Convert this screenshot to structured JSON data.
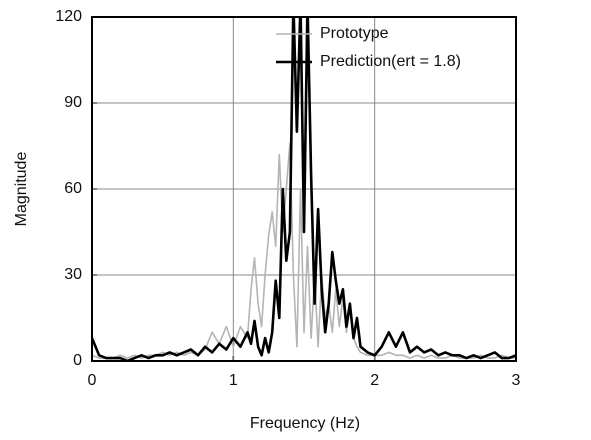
{
  "chart_data": {
    "type": "line",
    "xlabel": "Frequency (Hz)",
    "ylabel": "Magnitude",
    "xlim": [
      0,
      3
    ],
    "xticks": [
      0,
      1,
      2,
      3
    ],
    "ylim": [
      0,
      120
    ],
    "yticks": [
      0,
      30,
      60,
      90,
      120
    ],
    "grid": true,
    "legend": "top-right",
    "x": [
      0,
      0.05,
      0.1,
      0.15,
      0.2,
      0.25,
      0.3,
      0.35,
      0.4,
      0.45,
      0.5,
      0.55,
      0.6,
      0.65,
      0.7,
      0.75,
      0.8,
      0.85,
      0.9,
      0.95,
      1,
      1.05,
      1.1,
      1.125,
      1.15,
      1.175,
      1.2,
      1.225,
      1.25,
      1.275,
      1.3,
      1.325,
      1.35,
      1.375,
      1.4,
      1.425,
      1.45,
      1.475,
      1.5,
      1.525,
      1.55,
      1.575,
      1.6,
      1.625,
      1.65,
      1.675,
      1.7,
      1.725,
      1.75,
      1.775,
      1.8,
      1.825,
      1.85,
      1.875,
      1.9,
      1.95,
      2,
      2.05,
      2.1,
      2.15,
      2.2,
      2.25,
      2.3,
      2.35,
      2.4,
      2.45,
      2.5,
      2.55,
      2.6,
      2.65,
      2.7,
      2.75,
      2.8,
      2.85,
      2.9,
      2.95,
      3
    ],
    "series": [
      {
        "name": "Prototype",
        "color": "#b4b4b4",
        "width": 1.6,
        "values": [
          2,
          1,
          1,
          1,
          2,
          1,
          2,
          1,
          2,
          2,
          3,
          2,
          3,
          2,
          3,
          2,
          4,
          10,
          6,
          12,
          5,
          12,
          8,
          25,
          36,
          20,
          12,
          30,
          44,
          52,
          40,
          72,
          45,
          60,
          76,
          30,
          5,
          60,
          10,
          40,
          8,
          30,
          5,
          30,
          15,
          20,
          10,
          25,
          12,
          22,
          10,
          18,
          8,
          5,
          3,
          2,
          2,
          2,
          3,
          2,
          2,
          1,
          2,
          1,
          2,
          1,
          1,
          2,
          1,
          1,
          1,
          2,
          1,
          1,
          2,
          1,
          1
        ]
      },
      {
        "name": "Prediction(ert = 1.8)",
        "color": "#000000",
        "width": 2.6,
        "values": [
          8,
          2,
          1,
          1,
          1,
          0,
          1,
          2,
          1,
          2,
          2,
          3,
          2,
          3,
          4,
          2,
          5,
          3,
          6,
          4,
          8,
          5,
          10,
          6,
          14,
          5,
          2,
          8,
          3,
          10,
          28,
          15,
          60,
          35,
          45,
          125,
          80,
          125,
          45,
          125,
          65,
          20,
          53,
          25,
          10,
          20,
          38,
          28,
          20,
          25,
          12,
          20,
          8,
          15,
          5,
          3,
          2,
          5,
          10,
          5,
          10,
          3,
          5,
          3,
          4,
          2,
          3,
          2,
          2,
          1,
          2,
          1,
          2,
          3,
          1,
          1,
          2
        ]
      }
    ]
  }
}
